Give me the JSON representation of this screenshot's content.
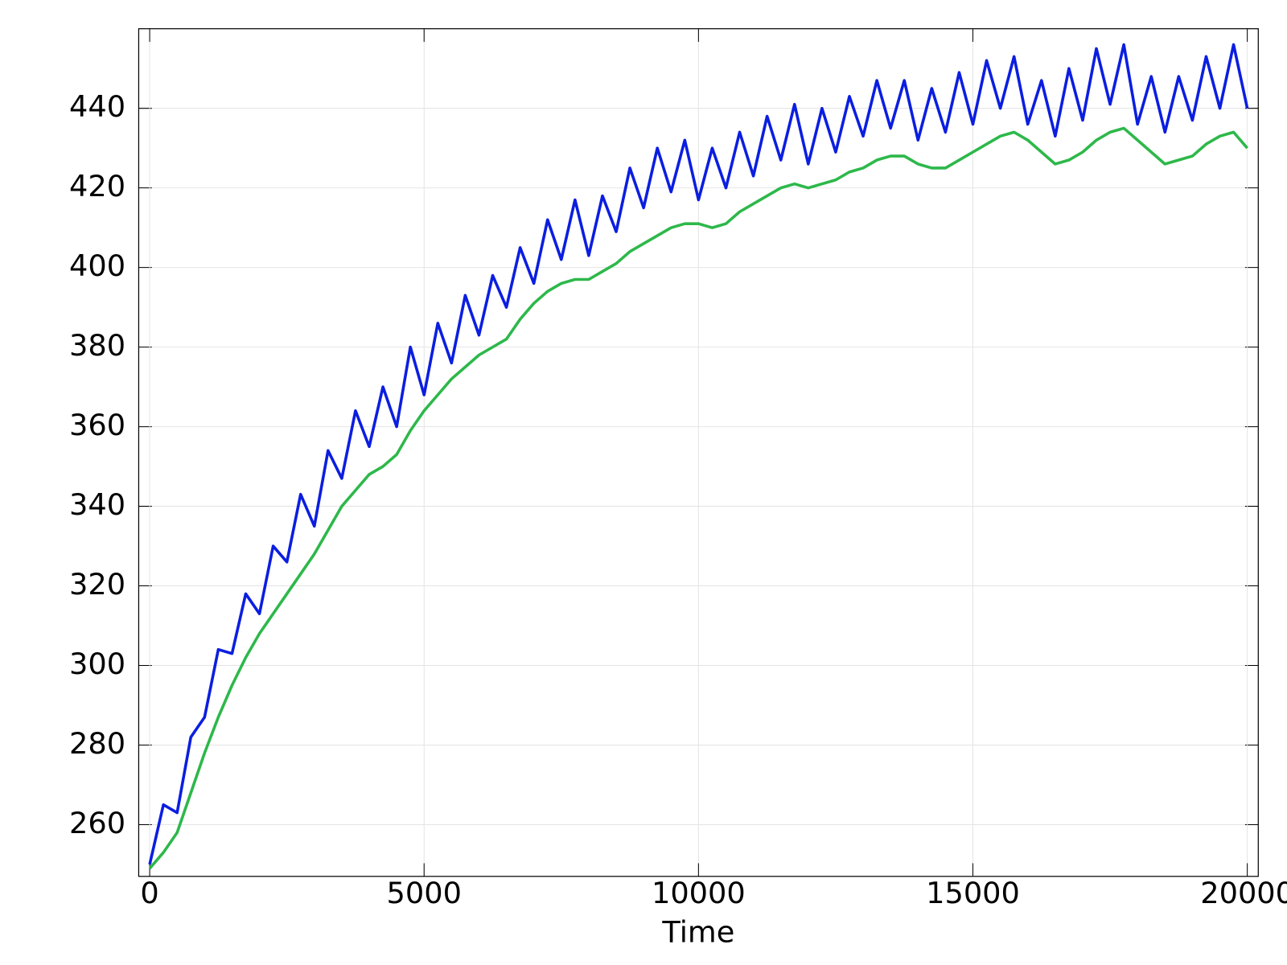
{
  "chart_data": {
    "type": "line",
    "xlabel": "Time",
    "x": [
      0,
      250,
      500,
      750,
      1000,
      1250,
      1500,
      1750,
      2000,
      2250,
      2500,
      2750,
      3000,
      3250,
      3500,
      3750,
      4000,
      4250,
      4500,
      4750,
      5000,
      5250,
      5500,
      5750,
      6000,
      6250,
      6500,
      6750,
      7000,
      7250,
      7500,
      7750,
      8000,
      8250,
      8500,
      8750,
      9000,
      9250,
      9500,
      9750,
      10000,
      10250,
      10500,
      10750,
      11000,
      11250,
      11500,
      11750,
      12000,
      12250,
      12500,
      12750,
      13000,
      13250,
      13500,
      13750,
      14000,
      14250,
      14500,
      14750,
      15000,
      15250,
      15500,
      15750,
      16000,
      16250,
      16500,
      16750,
      17000,
      17250,
      17500,
      17750,
      18000,
      18250,
      18500,
      18750,
      19000,
      19250,
      19500,
      19750,
      20000
    ],
    "series": [
      {
        "color": "#0b1ee0",
        "values": [
          250,
          265,
          263,
          282,
          287,
          304,
          303,
          318,
          313,
          330,
          326,
          343,
          335,
          354,
          347,
          364,
          355,
          370,
          360,
          380,
          368,
          386,
          376,
          393,
          383,
          398,
          390,
          405,
          396,
          412,
          402,
          417,
          403,
          418,
          409,
          425,
          415,
          430,
          419,
          432,
          417,
          430,
          420,
          434,
          423,
          438,
          427,
          441,
          426,
          440,
          429,
          443,
          433,
          447,
          435,
          447,
          432,
          445,
          434,
          449,
          436,
          452,
          440,
          453,
          436,
          447,
          433,
          450,
          437,
          455,
          441,
          456,
          436,
          448,
          434,
          448,
          437,
          453,
          440,
          456,
          440
        ]
      },
      {
        "color": "#2db84a",
        "values": [
          249,
          253,
          258,
          268,
          278,
          287,
          295,
          302,
          308,
          313,
          318,
          323,
          328,
          334,
          340,
          344,
          348,
          350,
          353,
          359,
          364,
          368,
          372,
          375,
          378,
          380,
          382,
          387,
          391,
          394,
          396,
          397,
          397,
          399,
          401,
          404,
          406,
          408,
          410,
          411,
          411,
          410,
          411,
          414,
          416,
          418,
          420,
          421,
          420,
          421,
          422,
          424,
          425,
          427,
          428,
          428,
          426,
          425,
          425,
          427,
          429,
          431,
          433,
          434,
          432,
          429,
          426,
          427,
          429,
          432,
          434,
          435,
          432,
          429,
          426,
          427,
          428,
          431,
          433,
          434,
          430
        ]
      }
    ],
    "xlim": [
      -200,
      20200
    ],
    "ylim": [
      247,
      460
    ],
    "xticks": [
      0,
      5000,
      10000,
      15000,
      20000
    ],
    "yticks": [
      260,
      280,
      300,
      320,
      340,
      360,
      380,
      400,
      420,
      440
    ],
    "grid": true
  }
}
